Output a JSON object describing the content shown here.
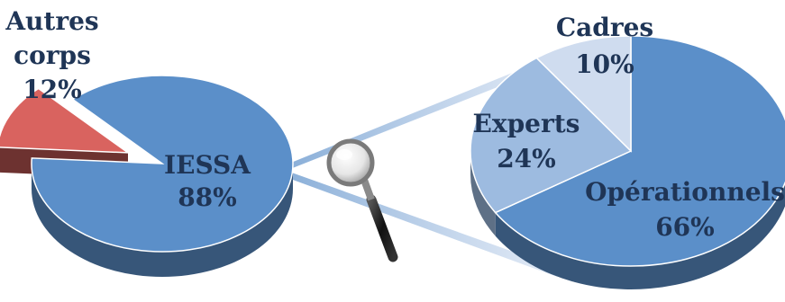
{
  "chart_data": [
    {
      "type": "pie",
      "title": "",
      "slices": [
        {
          "label": "IESSA",
          "value": 88,
          "display": "88%",
          "color": "#5b8fc9"
        },
        {
          "label": "Autres corps",
          "label_lines": [
            "Autres",
            "corps"
          ],
          "value": 12,
          "display": "12%",
          "color": "#d9635f",
          "exploded": true
        }
      ]
    },
    {
      "type": "pie",
      "title": "",
      "slices": [
        {
          "label": "Opérationnels",
          "value": 66,
          "display": "66%",
          "color": "#5b8fc9"
        },
        {
          "label": "Experts",
          "value": 24,
          "display": "24%",
          "color": "#9dbbe0"
        },
        {
          "label": "Cadres",
          "value": 10,
          "display": "10%",
          "color": "#cfdcef"
        }
      ]
    }
  ],
  "decoration": {
    "magnifier_icon": "magnifying-glass-icon"
  }
}
